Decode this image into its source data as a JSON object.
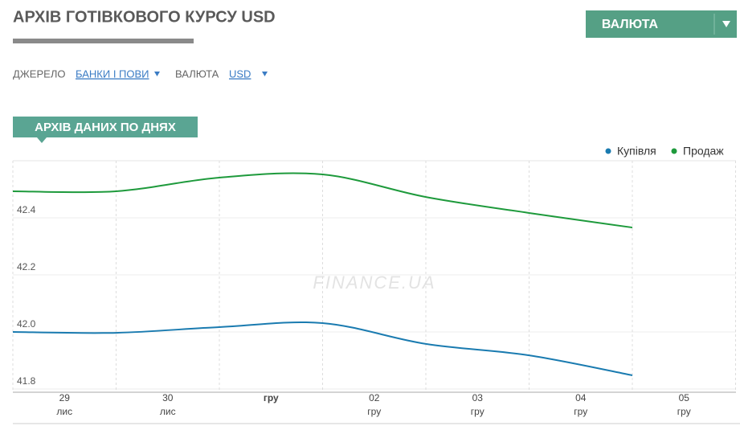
{
  "header": {
    "title": "АРХІВ ГОТІВКОВОГО КУРСУ USD",
    "button": "ВАЛЮТА"
  },
  "filters": {
    "source_label": "ДЖЕРЕЛО",
    "source_value": "БАНКИ І ПОВИ",
    "currency_label": "ВАЛЮТА",
    "currency_value": "USD"
  },
  "section_title": "АРХІВ ДАНИХ ПО ДНЯХ",
  "chart_data": {
    "type": "line",
    "watermark": "FINANCE.UA",
    "categories": [
      [
        "29",
        "лис"
      ],
      [
        "30",
        "лис"
      ],
      [
        "гру"
      ],
      [
        "02",
        "гру"
      ],
      [
        "03",
        "гру"
      ],
      [
        "04",
        "гру"
      ],
      [
        "05",
        "гру"
      ]
    ],
    "series": [
      {
        "name": "Купівля",
        "color": "#1a7bb0",
        "values": [
          42.0,
          41.997,
          42.017,
          42.031,
          41.958,
          41.918,
          41.848
        ]
      },
      {
        "name": "Продаж",
        "color": "#1e9a3c",
        "values": [
          42.493,
          42.493,
          42.541,
          42.552,
          42.473,
          42.417,
          42.366
        ]
      }
    ],
    "ylim": [
      41.8,
      42.6
    ],
    "yticks": [
      41.8,
      {
        "value": 42.0,
        "label": "42.0"
      },
      42.2,
      42.4
    ],
    "grid": true
  }
}
